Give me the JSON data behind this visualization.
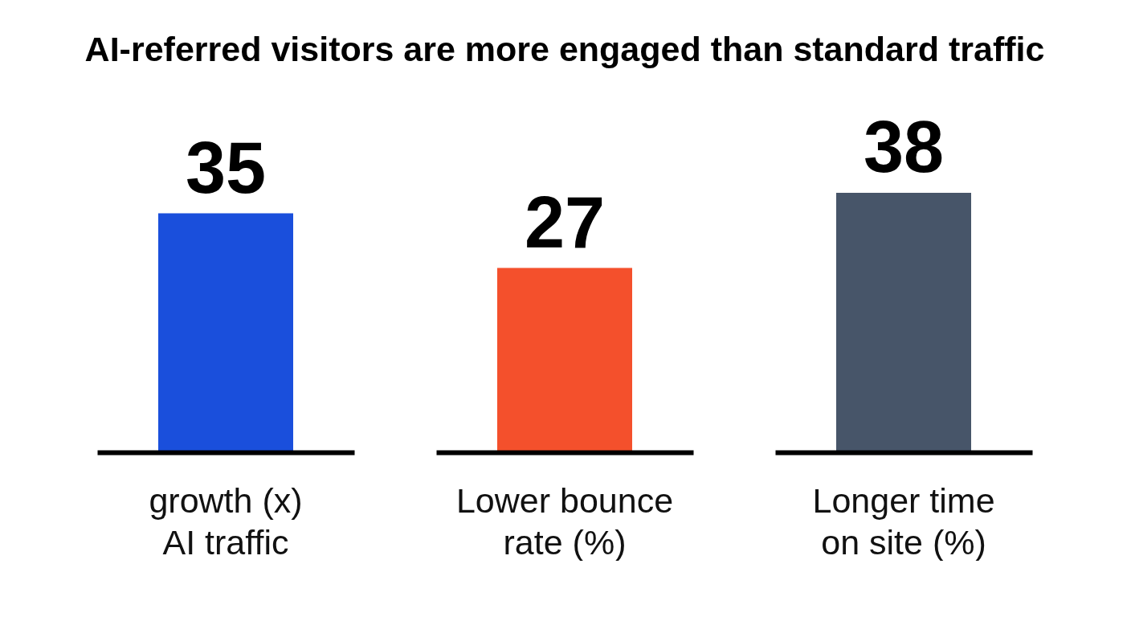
{
  "chart_data": {
    "type": "bar",
    "title": "AI-referred visitors are more engaged than standard traffic",
    "categories": [
      "growth (x)\nAI traffic",
      "Lower bounce\nrate (%)",
      "Longer time\non site (%)"
    ],
    "values": [
      35,
      27,
      38
    ],
    "colors": [
      "#1a4fdc",
      "#f4502c",
      "#475569"
    ],
    "data_labels": true
  }
}
